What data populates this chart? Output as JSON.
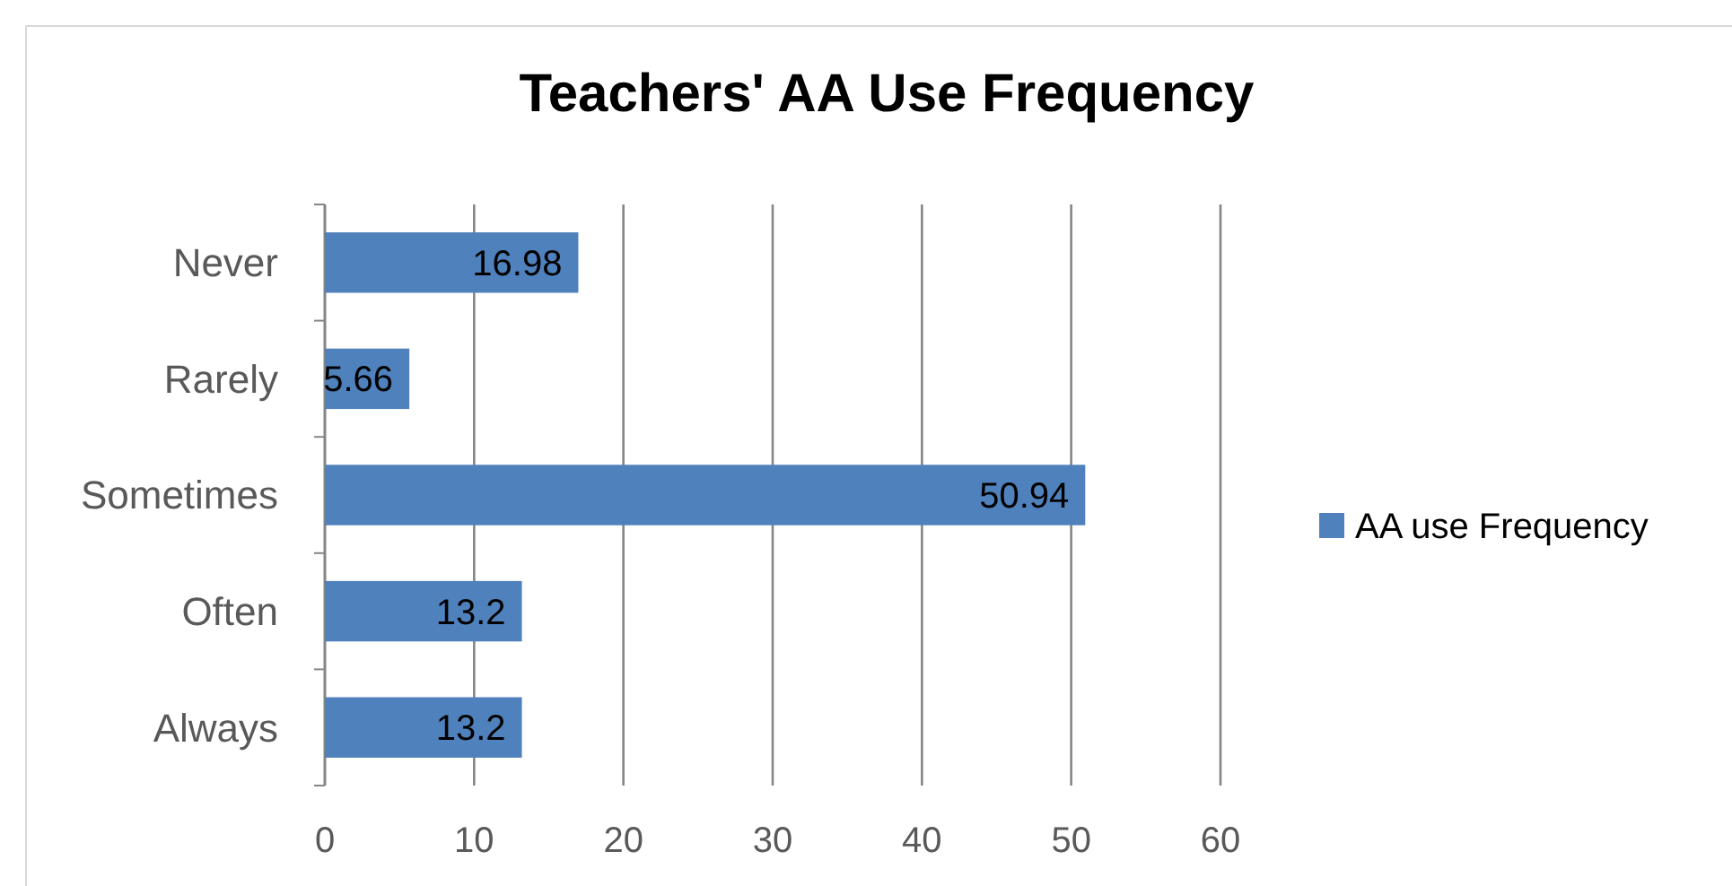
{
  "chart_data": {
    "type": "bar",
    "orientation": "horizontal",
    "title": "Teachers' AA Use Frequency",
    "categories": [
      "Never",
      "Rarely",
      "Sometimes",
      "Often",
      "Always"
    ],
    "series": [
      {
        "name": "AA use Frequency",
        "color": "#4f81bd",
        "values": [
          16.98,
          5.66,
          50.94,
          13.2,
          13.2
        ]
      }
    ],
    "xlim": [
      0,
      60
    ],
    "xticks": [
      0,
      10,
      20,
      30,
      40,
      50,
      60
    ],
    "grid": "x",
    "legend": "right",
    "data_labels": true
  }
}
